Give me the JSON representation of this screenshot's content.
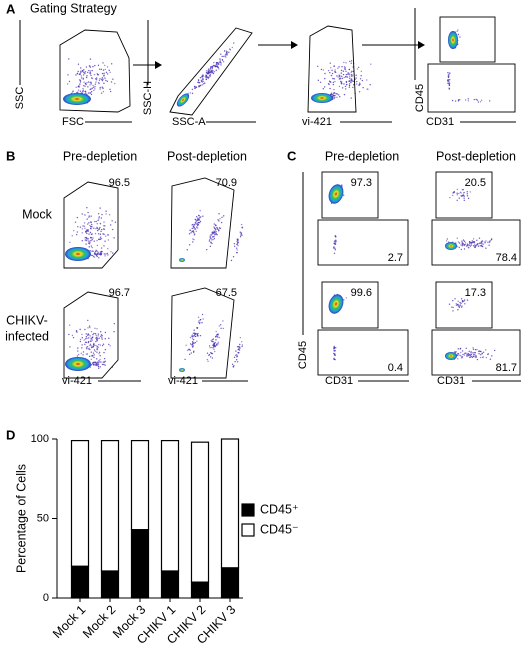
{
  "panel_labels": [
    "A",
    "B",
    "C",
    "D"
  ],
  "panel_a": {
    "title": "Gating Strategy",
    "plots": [
      {
        "x_label": "FSC",
        "y_label": "SSC"
      },
      {
        "x_label": "SSC-A",
        "y_label": "SSC-H"
      },
      {
        "x_label": "vi-421"
      },
      {
        "x_label": "CD31",
        "y_label": "CD45"
      }
    ]
  },
  "panel_b": {
    "columns": [
      "Pre-depletion",
      "Post-depletion"
    ],
    "x_label": "vi-421",
    "rows": [
      {
        "label": [
          "Mock"
        ],
        "gates": [
          96.5,
          70.9
        ]
      },
      {
        "label": [
          "CHIKV-",
          "infected"
        ],
        "gates": [
          96.7,
          67.5
        ]
      }
    ]
  },
  "panel_c": {
    "columns": [
      "Pre-depletion",
      "Post-depletion"
    ],
    "x_label": "CD31",
    "y_label": "CD45",
    "rows": [
      {
        "gates": [
          [
            97.3,
            2.7
          ],
          [
            20.5,
            78.4
          ]
        ]
      },
      {
        "gates": [
          [
            99.6,
            0.4
          ],
          [
            17.3,
            81.7
          ]
        ]
      }
    ]
  },
  "chart_data": {
    "type": "stacked_bar",
    "y_label": "Percentage of Cells",
    "categories": [
      "Mock 1",
      "Mock 2",
      "Mock 3",
      "CHIKV 1",
      "CHIKV 2",
      "CHIKV 3"
    ],
    "series": [
      {
        "name": "CD45⁺",
        "color": "#000000",
        "values": [
          20,
          17,
          43,
          17,
          10,
          19
        ]
      },
      {
        "name": "CD45⁻",
        "color": "#ffffff",
        "values": [
          79,
          82,
          56,
          82,
          88,
          81
        ]
      }
    ],
    "ylim": [
      0,
      100
    ],
    "yticks": [
      0,
      50,
      100
    ],
    "legend": "right"
  }
}
